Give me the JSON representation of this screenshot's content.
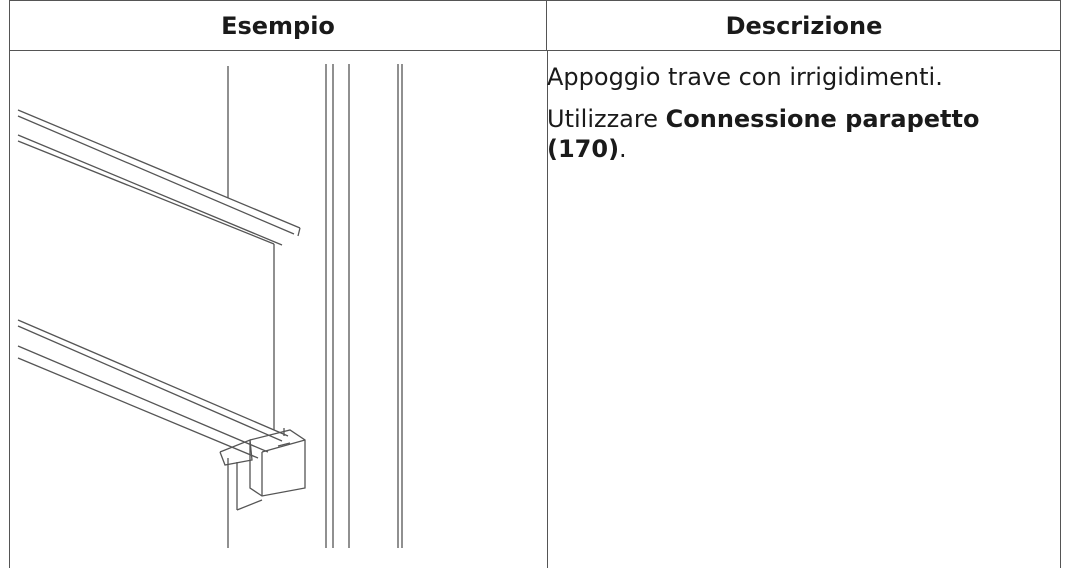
{
  "table": {
    "headers": [
      "Esempio",
      "Descrizione"
    ],
    "rows": [
      {
        "description": {
          "line1": "Appoggio trave con irrigidimenti.",
          "line2_prefix": "Utilizzare ",
          "line2_bold": "Connessione parapetto (170)",
          "line2_suffix": "."
        }
      }
    ]
  }
}
